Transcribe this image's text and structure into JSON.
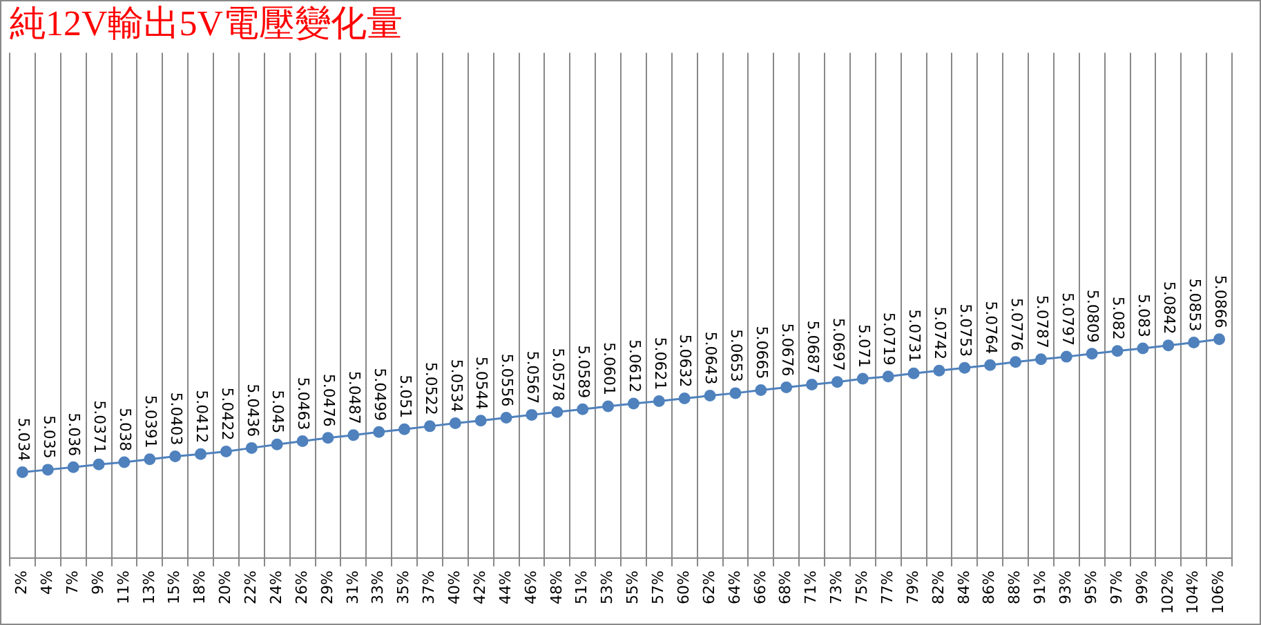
{
  "chart_data": {
    "type": "line",
    "title": "純12V輸出5V電壓變化量",
    "categories": [
      "2%",
      "4%",
      "7%",
      "9%",
      "11%",
      "13%",
      "15%",
      "18%",
      "20%",
      "22%",
      "24%",
      "26%",
      "29%",
      "31%",
      "33%",
      "35%",
      "37%",
      "40%",
      "42%",
      "44%",
      "46%",
      "48%",
      "51%",
      "53%",
      "55%",
      "57%",
      "60%",
      "62%",
      "64%",
      "66%",
      "68%",
      "71%",
      "73%",
      "75%",
      "77%",
      "79%",
      "82%",
      "84%",
      "86%",
      "88%",
      "91%",
      "93%",
      "95%",
      "97%",
      "99%",
      "102%",
      "104%",
      "106%"
    ],
    "series": [
      {
        "color": "#4f81bd",
        "values": [
          5.034,
          5.035,
          5.036,
          5.0371,
          5.038,
          5.0391,
          5.0403,
          5.0412,
          5.0422,
          5.0436,
          5.045,
          5.0463,
          5.0476,
          5.0487,
          5.0499,
          5.051,
          5.0522,
          5.0534,
          5.0544,
          5.0556,
          5.0567,
          5.0578,
          5.0589,
          5.0601,
          5.0612,
          5.0621,
          5.0632,
          5.0643,
          5.0653,
          5.0665,
          5.0676,
          5.0687,
          5.0697,
          5.071,
          5.0719,
          5.0731,
          5.0742,
          5.0753,
          5.0764,
          5.0776,
          5.0787,
          5.0797,
          5.0809,
          5.082,
          5.083,
          5.0842,
          5.0853,
          5.0866
        ]
      }
    ],
    "ylim": [
      5,
      5.2
    ],
    "tick_labels": "x",
    "grid": "x",
    "marker": "circle",
    "line_style": "solid",
    "legend": false,
    "data_labels": true
  }
}
